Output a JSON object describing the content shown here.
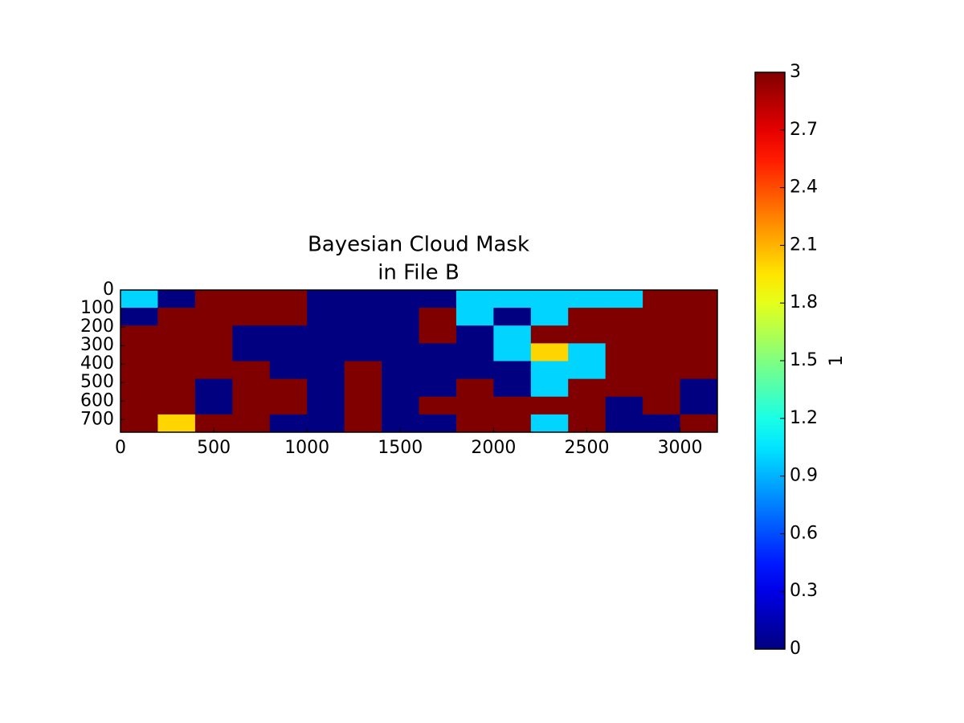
{
  "chart_data": {
    "type": "heatmap",
    "title": [
      "Bayesian Cloud Mask",
      "in File B"
    ],
    "colormap": "jet",
    "xlim": [
      0,
      3200
    ],
    "ylim": [
      768,
      0
    ],
    "xticks": [
      0,
      500,
      1000,
      1500,
      2000,
      2500,
      3000
    ],
    "yticks": [
      0,
      100,
      200,
      300,
      400,
      500,
      600,
      700
    ],
    "z": [
      [
        1,
        0,
        3,
        3,
        3,
        0,
        0,
        0,
        0,
        1,
        1,
        1,
        1,
        1,
        3,
        3
      ],
      [
        0,
        3,
        3,
        3,
        3,
        0,
        0,
        0,
        3,
        1,
        0,
        1,
        3,
        3,
        3,
        3
      ],
      [
        3,
        3,
        3,
        0,
        0,
        0,
        0,
        0,
        3,
        0,
        1,
        3,
        3,
        3,
        3,
        3
      ],
      [
        3,
        3,
        3,
        0,
        0,
        0,
        0,
        0,
        0,
        0,
        1,
        2,
        1,
        3,
        3,
        3
      ],
      [
        3,
        3,
        3,
        3,
        0,
        0,
        3,
        0,
        0,
        0,
        0,
        1,
        1,
        3,
        3,
        3
      ],
      [
        3,
        3,
        0,
        3,
        3,
        0,
        3,
        0,
        0,
        3,
        0,
        1,
        3,
        3,
        3,
        0
      ],
      [
        3,
        3,
        0,
        3,
        3,
        0,
        3,
        0,
        3,
        3,
        3,
        3,
        3,
        0,
        3,
        0
      ],
      [
        3,
        2,
        3,
        3,
        0,
        0,
        3,
        0,
        0,
        3,
        3,
        1,
        3,
        0,
        0,
        3
      ]
    ],
    "colorbar": {
      "label": "1",
      "lim": [
        0,
        3
      ],
      "ticks": [
        0,
        0.3,
        0.6,
        0.9,
        1.2,
        1.5,
        1.8,
        2.1,
        2.4,
        2.7,
        3
      ]
    }
  }
}
